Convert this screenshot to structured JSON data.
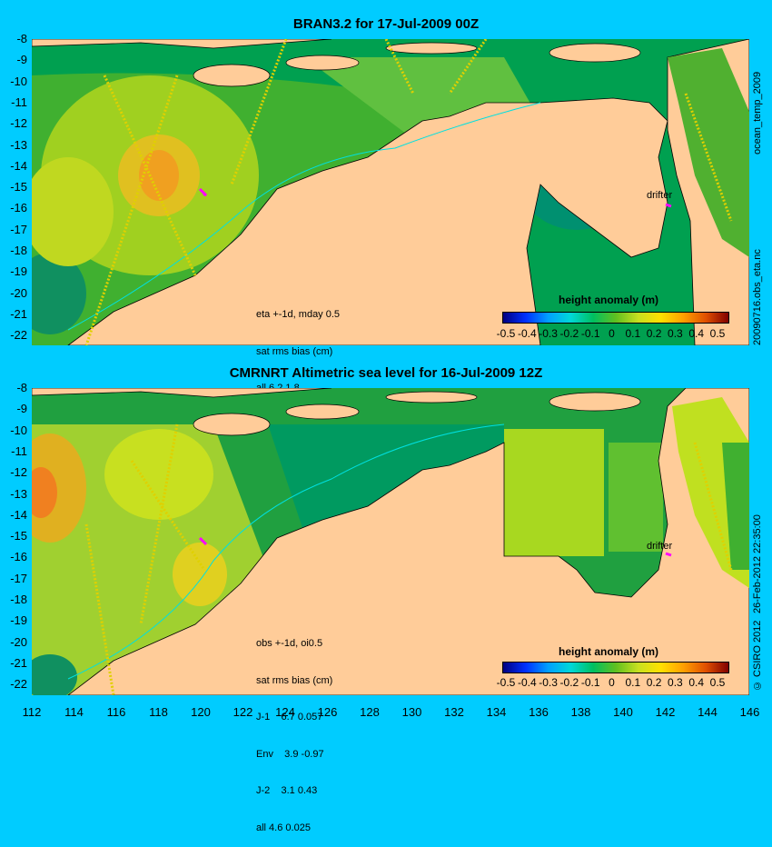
{
  "panels": [
    {
      "title": "BRAN3.2 for 17-Jul-2009 00Z",
      "info_lines": [
        "eta +-1d, mday 0.5",
        "sat rms bias (cm)",
        "all 6.2 1.8"
      ],
      "side_label": "20090716.obs_eta.nc",
      "drifter_label": "drifter",
      "colorbar_title": "height anomaly (m)"
    },
    {
      "title": "CMRNRT Altimetric sea level  for 16-Jul-2009 12Z",
      "info_lines": [
        "obs +-1d, oi0.5",
        "sat rms bias (cm)",
        "J-1    6.7 0.057",
        "Env    3.9 -0.97",
        "J-2    3.1 0.43",
        "all 4.6 0.025"
      ],
      "side_label": "26-Feb-2012 22:35:00",
      "drifter_label": "drifter",
      "colorbar_title": "height anomaly (m)"
    }
  ],
  "top_side_label": "ocean_temp_2009",
  "bottom_side_label": "© CSIRO 2012",
  "y_ticks": [
    "-8",
    "-9",
    "-10",
    "-11",
    "-12",
    "-13",
    "-14",
    "-15",
    "-16",
    "-17",
    "-18",
    "-19",
    "-20",
    "-21",
    "-22"
  ],
  "x_ticks": [
    "112",
    "114",
    "116",
    "118",
    "120",
    "122",
    "124",
    "126",
    "128",
    "130",
    "132",
    "134",
    "136",
    "138",
    "140",
    "142",
    "144",
    "146"
  ],
  "colorbar_ticks": [
    "-0.5",
    "-0.4",
    "-0.3",
    "-0.2",
    "-0.1",
    "0",
    "0.1",
    "0.2",
    "0.3",
    "0.4",
    "0.5"
  ],
  "colors": {
    "background": "#00ccff",
    "land": "#ffcc99",
    "ocean_base": "#009966"
  }
}
